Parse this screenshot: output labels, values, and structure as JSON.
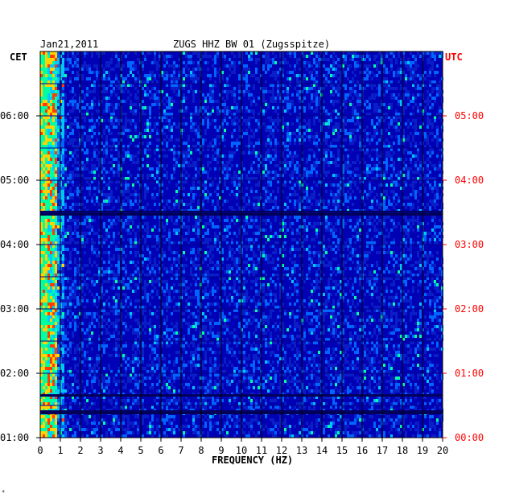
{
  "chart_data": {
    "type": "heatmap",
    "header": {
      "date": "Jan21,2011",
      "station": "ZUGS HHZ BW 01 (Zugsspitze)"
    },
    "left_timezone": "CET",
    "right_timezone": "UTC",
    "xlabel": "FREQUENCY (HZ)",
    "x_ticks": [
      "0",
      "1",
      "2",
      "3",
      "4",
      "5",
      "6",
      "7",
      "8",
      "9",
      "10",
      "11",
      "12",
      "13",
      "14",
      "15",
      "16",
      "17",
      "18",
      "19",
      "20"
    ],
    "xlim": [
      0,
      20
    ],
    "left_time_ticks": [
      "06:00",
      "05:00",
      "04:00",
      "03:00",
      "02:00",
      "01:00"
    ],
    "right_time_ticks": [
      "05:00",
      "04:00",
      "03:00",
      "02:00",
      "01:00",
      "00:00"
    ],
    "time_range_cet": [
      "01:00",
      "07:00"
    ],
    "colors": {
      "background": "#0000b4",
      "low": "#0a1ec8",
      "mid": "#00c8ff",
      "high": "#ffd200",
      "peak": "#ff3c00",
      "grid": "#000000",
      "utc_label": "#ff0000",
      "cet_label": "#000000"
    }
  }
}
